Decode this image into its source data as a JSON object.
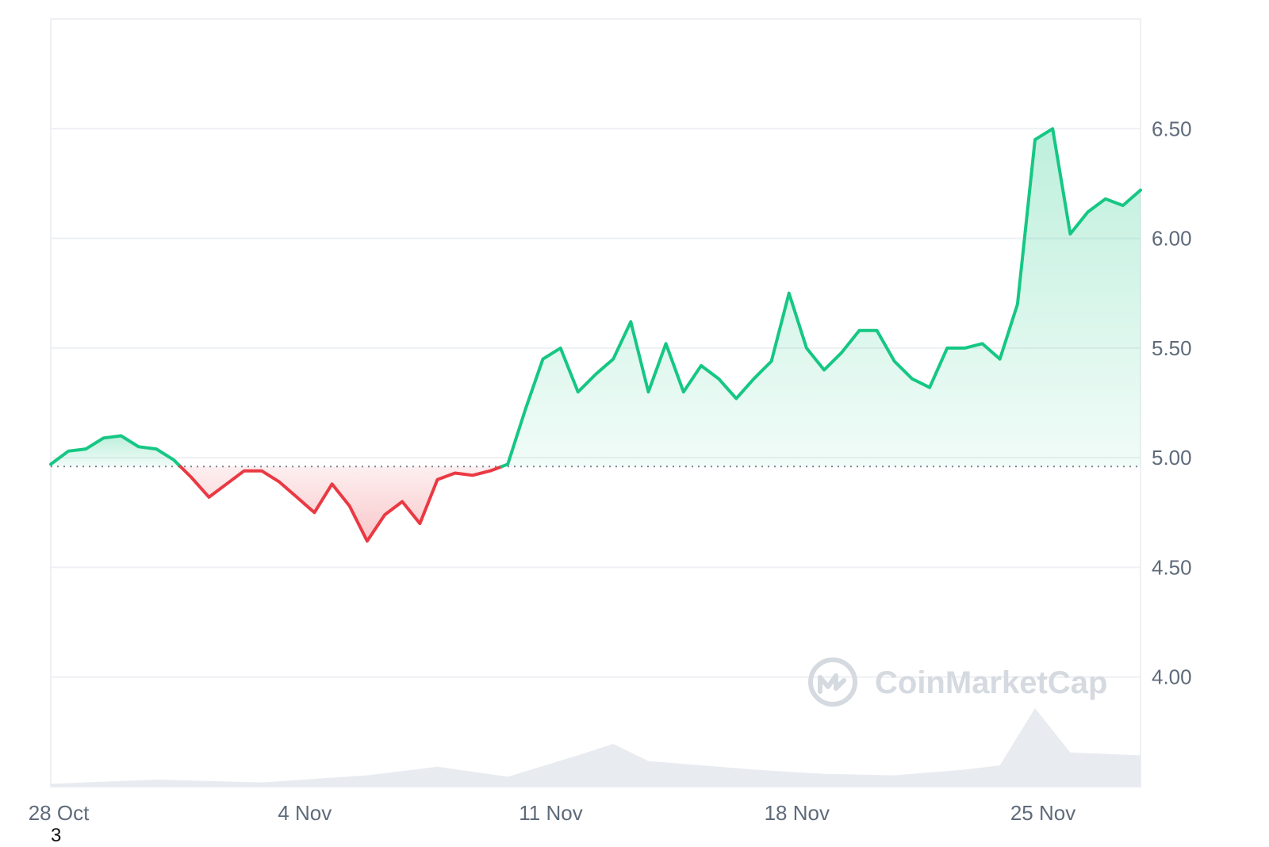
{
  "watermark": {
    "brand": "CoinMarketCap",
    "icon": "coinmarketcap-logo-icon"
  },
  "footnote": "3",
  "colors": {
    "up": "#16c784",
    "down": "#ea3943",
    "up_fill": "#16c784",
    "down_fill": "#ea3943",
    "grid": "#eef0f3",
    "volume": "#e6e9ee",
    "baseline": "#7a8490"
  },
  "chart_data": {
    "type": "area",
    "title": "",
    "xlabel": "",
    "ylabel": "",
    "x_tick_labels": [
      "28 Oct",
      "4 Nov",
      "11 Nov",
      "18 Nov",
      "25 Nov"
    ],
    "y_tick_labels": [
      "4.00",
      "4.50",
      "5.00",
      "5.50",
      "6.00",
      "6.50"
    ],
    "ylim": [
      3.5,
      7.0
    ],
    "xlim": [
      "2024-10-28",
      "2024-11-28"
    ],
    "baseline": 4.96,
    "grid": true,
    "series": [
      {
        "points": [
          [
            "2024-10-28",
            4.97
          ],
          [
            "2024-10-28T12",
            5.03
          ],
          [
            "2024-10-29",
            5.04
          ],
          [
            "2024-10-29T12",
            5.09
          ],
          [
            "2024-10-30",
            5.1
          ],
          [
            "2024-10-30T12",
            5.05
          ],
          [
            "2024-10-31",
            5.04
          ],
          [
            "2024-10-31T12",
            4.99
          ],
          [
            "2024-11-01",
            4.91
          ],
          [
            "2024-11-01T12",
            4.82
          ],
          [
            "2024-11-02",
            4.88
          ],
          [
            "2024-11-02T12",
            4.94
          ],
          [
            "2024-11-03",
            4.94
          ],
          [
            "2024-11-03T12",
            4.89
          ],
          [
            "2024-11-04",
            4.82
          ],
          [
            "2024-11-04T12",
            4.75
          ],
          [
            "2024-11-05",
            4.88
          ],
          [
            "2024-11-05T12",
            4.78
          ],
          [
            "2024-11-06",
            4.62
          ],
          [
            "2024-11-06T12",
            4.74
          ],
          [
            "2024-11-07",
            4.8
          ],
          [
            "2024-11-07T12",
            4.7
          ],
          [
            "2024-11-08",
            4.9
          ],
          [
            "2024-11-08T12",
            4.93
          ],
          [
            "2024-11-09",
            4.92
          ],
          [
            "2024-11-09T12",
            4.94
          ],
          [
            "2024-11-10",
            4.97
          ],
          [
            "2024-11-10T12",
            5.22
          ],
          [
            "2024-11-11",
            5.45
          ],
          [
            "2024-11-11T12",
            5.5
          ],
          [
            "2024-11-12",
            5.3
          ],
          [
            "2024-11-12T12",
            5.38
          ],
          [
            "2024-11-13",
            5.45
          ],
          [
            "2024-11-13T12",
            5.62
          ],
          [
            "2024-11-14",
            5.3
          ],
          [
            "2024-11-14T12",
            5.52
          ],
          [
            "2024-11-15",
            5.3
          ],
          [
            "2024-11-15T12",
            5.42
          ],
          [
            "2024-11-16",
            5.36
          ],
          [
            "2024-11-16T12",
            5.27
          ],
          [
            "2024-11-17",
            5.36
          ],
          [
            "2024-11-17T12",
            5.44
          ],
          [
            "2024-11-18",
            5.75
          ],
          [
            "2024-11-18T12",
            5.5
          ],
          [
            "2024-11-19",
            5.4
          ],
          [
            "2024-11-19T12",
            5.48
          ],
          [
            "2024-11-20",
            5.58
          ],
          [
            "2024-11-20T12",
            5.58
          ],
          [
            "2024-11-21",
            5.44
          ],
          [
            "2024-11-21T12",
            5.36
          ],
          [
            "2024-11-22",
            5.32
          ],
          [
            "2024-11-22T12",
            5.5
          ],
          [
            "2024-11-23",
            5.5
          ],
          [
            "2024-11-23T12",
            5.52
          ],
          [
            "2024-11-24",
            5.45
          ],
          [
            "2024-11-24T12",
            5.7
          ],
          [
            "2024-11-25",
            6.45
          ],
          [
            "2024-11-25T12",
            6.5
          ],
          [
            "2024-11-26",
            6.02
          ],
          [
            "2024-11-26T12",
            6.12
          ],
          [
            "2024-11-27",
            6.18
          ],
          [
            "2024-11-27T12",
            6.15
          ],
          [
            "2024-11-28",
            6.22
          ]
        ]
      }
    ],
    "volume": [
      [
        "2024-10-28",
        0.02
      ],
      [
        "2024-10-31",
        0.05
      ],
      [
        "2024-11-03",
        0.03
      ],
      [
        "2024-11-06",
        0.08
      ],
      [
        "2024-11-08",
        0.14
      ],
      [
        "2024-11-10",
        0.07
      ],
      [
        "2024-11-12",
        0.22
      ],
      [
        "2024-11-13",
        0.3
      ],
      [
        "2024-11-14",
        0.18
      ],
      [
        "2024-11-17",
        0.12
      ],
      [
        "2024-11-19",
        0.09
      ],
      [
        "2024-11-21",
        0.08
      ],
      [
        "2024-11-23",
        0.12
      ],
      [
        "2024-11-24",
        0.15
      ],
      [
        "2024-11-25",
        0.55
      ],
      [
        "2024-11-26",
        0.24
      ],
      [
        "2024-11-28",
        0.22
      ]
    ]
  }
}
